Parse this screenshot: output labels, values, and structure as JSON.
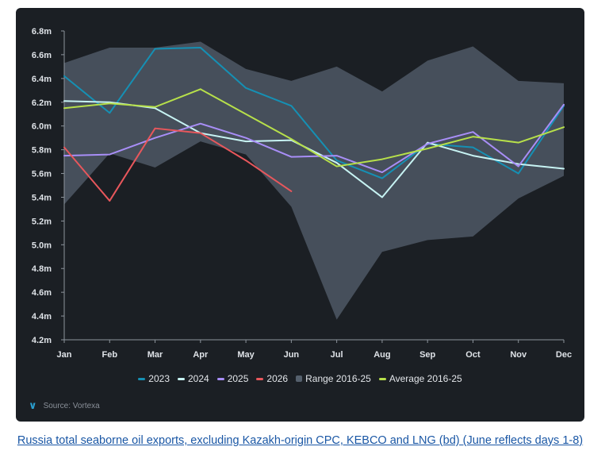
{
  "caption": "Russia total seaborne oil exports, excluding Kazakh-origin CPC, KEBCO and LNG (bd) (June reflects days 1-8)",
  "source": {
    "text": "Source: Vortexa",
    "logo_icon": "vortexa-logo-icon"
  },
  "chart_data": {
    "type": "line",
    "categories": [
      "Jan",
      "Feb",
      "Mar",
      "Apr",
      "May",
      "Jun",
      "Jul",
      "Aug",
      "Sep",
      "Oct",
      "Nov",
      "Dec"
    ],
    "y_ticks": [
      "4.2m",
      "4.4m",
      "4.6m",
      "4.8m",
      "5.0m",
      "5.2m",
      "5.4m",
      "5.6m",
      "5.8m",
      "6.0m",
      "6.2m",
      "6.4m",
      "6.6m",
      "6.8m"
    ],
    "ylim": [
      4.2,
      6.8
    ],
    "background": "#1b1f24",
    "range": {
      "name": "Range 2016-25",
      "color": "#55606d",
      "high": [
        6.53,
        6.66,
        6.66,
        6.71,
        6.48,
        6.38,
        6.5,
        6.29,
        6.55,
        6.67,
        6.38,
        6.36
      ],
      "low": [
        5.34,
        5.77,
        5.65,
        5.87,
        5.76,
        5.32,
        4.37,
        4.94,
        5.04,
        5.07,
        5.39,
        5.58
      ]
    },
    "series": [
      {
        "name": "2023",
        "color": "#1590b4",
        "values": [
          6.42,
          6.11,
          6.65,
          6.66,
          6.32,
          6.17,
          5.71,
          5.56,
          5.85,
          5.82,
          5.6,
          6.17
        ]
      },
      {
        "name": "2024",
        "color": "#c7f3f3",
        "values": [
          6.21,
          6.2,
          6.15,
          5.94,
          5.87,
          5.88,
          5.69,
          5.4,
          5.86,
          5.75,
          5.68,
          5.64
        ]
      },
      {
        "name": "2025",
        "color": "#a88ef7",
        "values": [
          5.75,
          5.76,
          5.9,
          6.02,
          5.9,
          5.74,
          5.75,
          5.61,
          5.85,
          5.95,
          5.66,
          6.18
        ]
      },
      {
        "name": "2026",
        "color": "#e8575c",
        "values": [
          5.82,
          5.37,
          5.98,
          5.94,
          5.71,
          5.45,
          null,
          null,
          null,
          null,
          null,
          null
        ]
      },
      {
        "name": "Average 2016-25",
        "color": "#b7e04a",
        "values": [
          6.15,
          6.19,
          6.16,
          6.31,
          6.1,
          5.89,
          5.66,
          5.72,
          5.81,
          5.91,
          5.86,
          5.99
        ]
      }
    ],
    "legend": [
      {
        "label": "2023",
        "color": "#1590b4",
        "kind": "line"
      },
      {
        "label": "2024",
        "color": "#c7f3f3",
        "kind": "line"
      },
      {
        "label": "2025",
        "color": "#a88ef7",
        "kind": "line"
      },
      {
        "label": "2026",
        "color": "#e8575c",
        "kind": "line"
      },
      {
        "label": "Range 2016-25",
        "color": "#55606d",
        "kind": "box"
      },
      {
        "label": "Average 2016-25",
        "color": "#b7e04a",
        "kind": "line"
      }
    ],
    "legend_position": "bottom-center",
    "grid": false
  }
}
